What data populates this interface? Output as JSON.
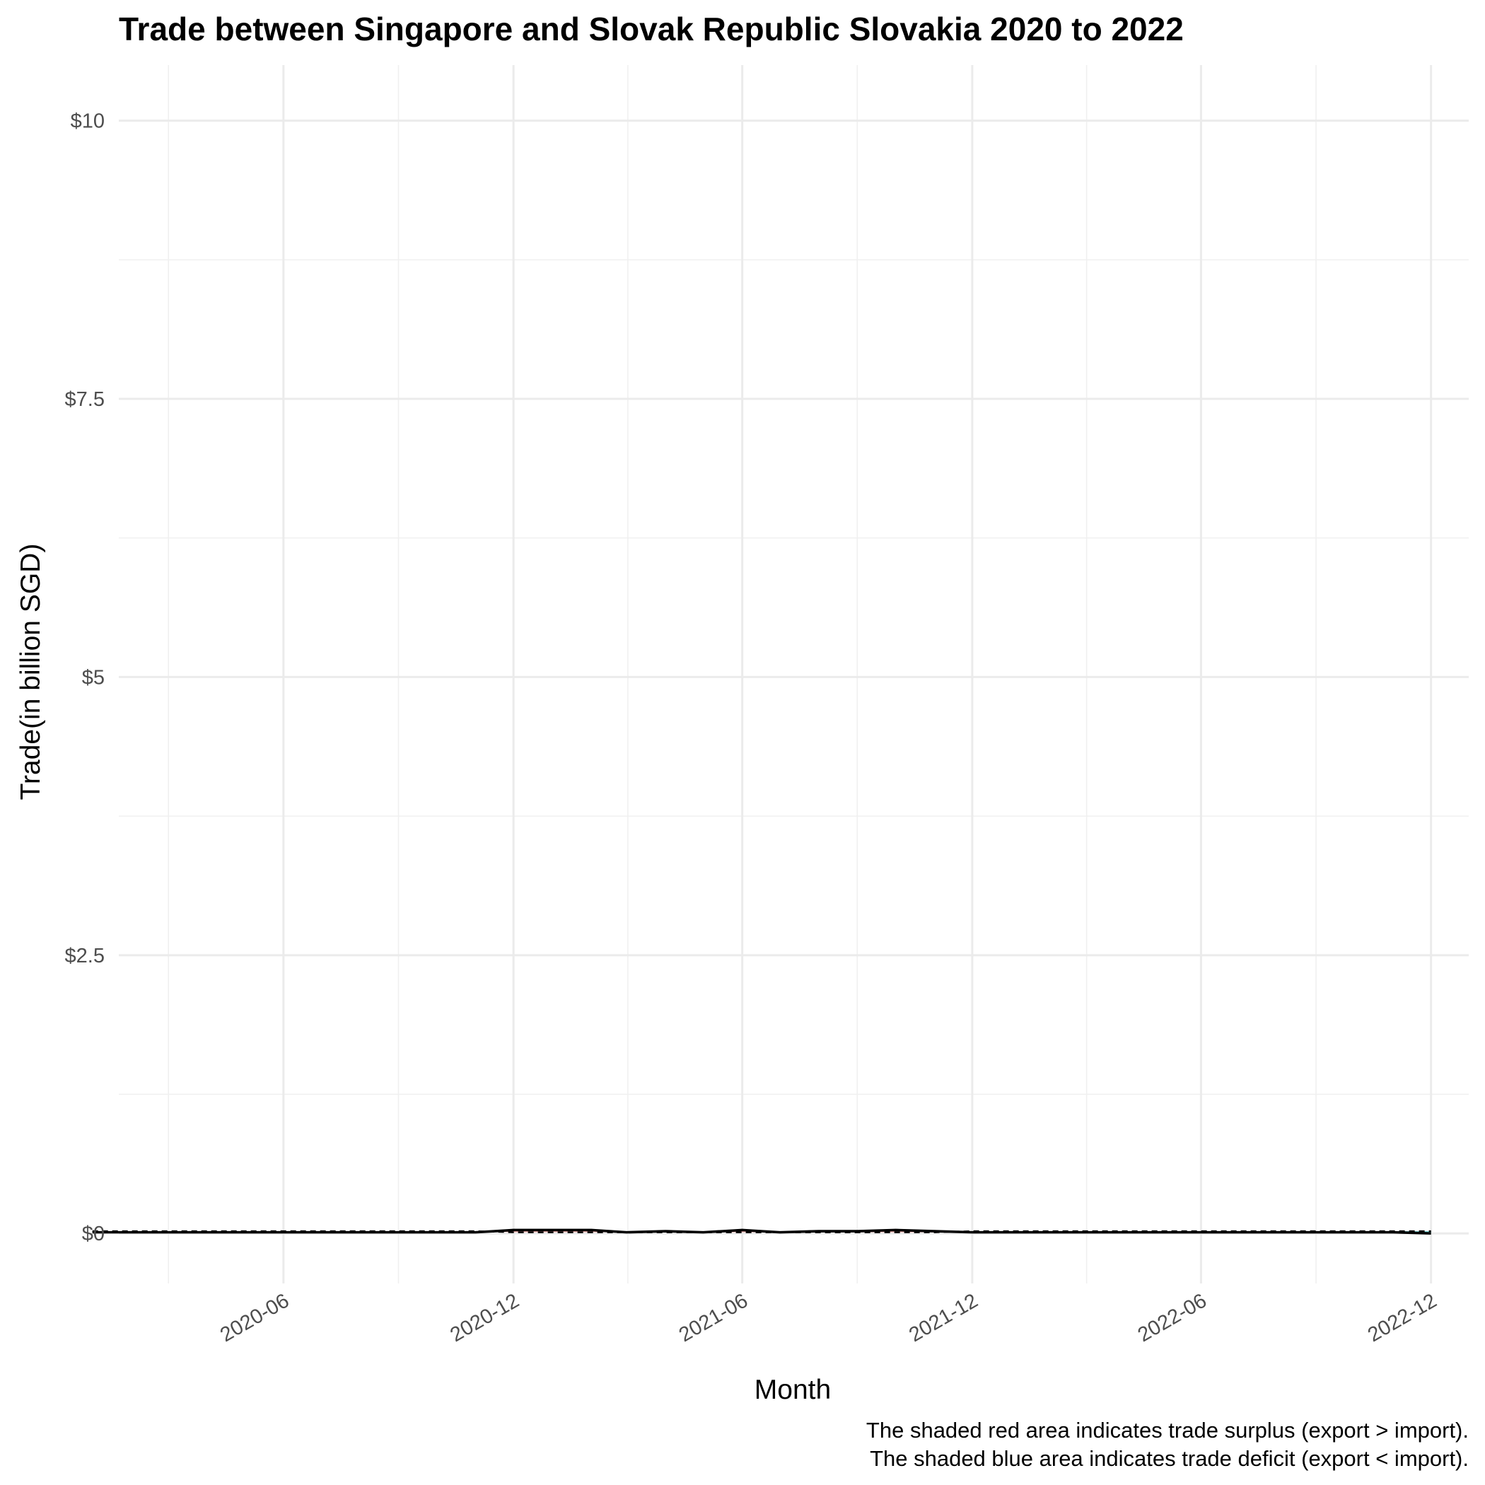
{
  "chart_data": {
    "type": "line",
    "title": "Trade between Singapore and Slovak Republic Slovakia  2020 to 2022",
    "xlabel": "Month",
    "ylabel": "Trade(in billion SGD)",
    "ylim": [
      -0.45,
      10.5
    ],
    "y_ticks": [
      {
        "value": 0,
        "label": "$0"
      },
      {
        "value": 2.5,
        "label": "$2.5"
      },
      {
        "value": 5,
        "label": "$5"
      },
      {
        "value": 7.5,
        "label": "$7.5"
      },
      {
        "value": 10,
        "label": "$10"
      }
    ],
    "x_range": [
      "2020-01-22",
      "2022-12-31"
    ],
    "x_ticks": [
      {
        "date": "2020-06-01",
        "label": "2020-06"
      },
      {
        "date": "2020-12-01",
        "label": "2020-12"
      },
      {
        "date": "2021-06-01",
        "label": "2021-06"
      },
      {
        "date": "2021-12-01",
        "label": "2021-12"
      },
      {
        "date": "2022-06-01",
        "label": "2022-06"
      },
      {
        "date": "2022-12-01",
        "label": "2022-12"
      }
    ],
    "grid": true,
    "legend": "none",
    "months": [
      "2020-01",
      "2020-02",
      "2020-03",
      "2020-04",
      "2020-05",
      "2020-06",
      "2020-07",
      "2020-08",
      "2020-09",
      "2020-10",
      "2020-11",
      "2020-12",
      "2021-01",
      "2021-02",
      "2021-03",
      "2021-04",
      "2021-05",
      "2021-06",
      "2021-07",
      "2021-08",
      "2021-09",
      "2021-10",
      "2021-11",
      "2021-12",
      "2022-01",
      "2022-02",
      "2022-03",
      "2022-04",
      "2022-05",
      "2022-06",
      "2022-07",
      "2022-08",
      "2022-09",
      "2022-10",
      "2022-11",
      "2022-12"
    ],
    "series": [
      {
        "style": "solid",
        "color": "#000000",
        "values": [
          0.01,
          0.01,
          0.01,
          0.01,
          0.01,
          0.01,
          0.01,
          0.01,
          0.01,
          0.01,
          0.01,
          0.03,
          0.03,
          0.03,
          0.01,
          0.02,
          0.01,
          0.03,
          0.01,
          0.02,
          0.02,
          0.03,
          0.02,
          0.01,
          0.01,
          0.01,
          0.01,
          0.01,
          0.01,
          0.01,
          0.01,
          0.01,
          0.01,
          0.01,
          0.01,
          0.0
        ]
      },
      {
        "style": "dashed",
        "color": "#000000",
        "values": [
          0.02,
          0.02,
          0.02,
          0.02,
          0.02,
          0.02,
          0.02,
          0.02,
          0.02,
          0.02,
          0.02,
          0.01,
          0.01,
          0.01,
          0.01,
          0.01,
          0.01,
          0.01,
          0.01,
          0.01,
          0.01,
          0.01,
          0.01,
          0.02,
          0.02,
          0.02,
          0.02,
          0.02,
          0.02,
          0.02,
          0.02,
          0.02,
          0.02,
          0.02,
          0.02,
          0.02
        ]
      }
    ],
    "colors": {
      "surplus": "#f8766d",
      "deficit": "#00bfc4"
    },
    "captions": [
      "The shaded red area indicates trade surplus (export > import).",
      "The shaded blue area indicates trade deficit (export < import)."
    ]
  }
}
